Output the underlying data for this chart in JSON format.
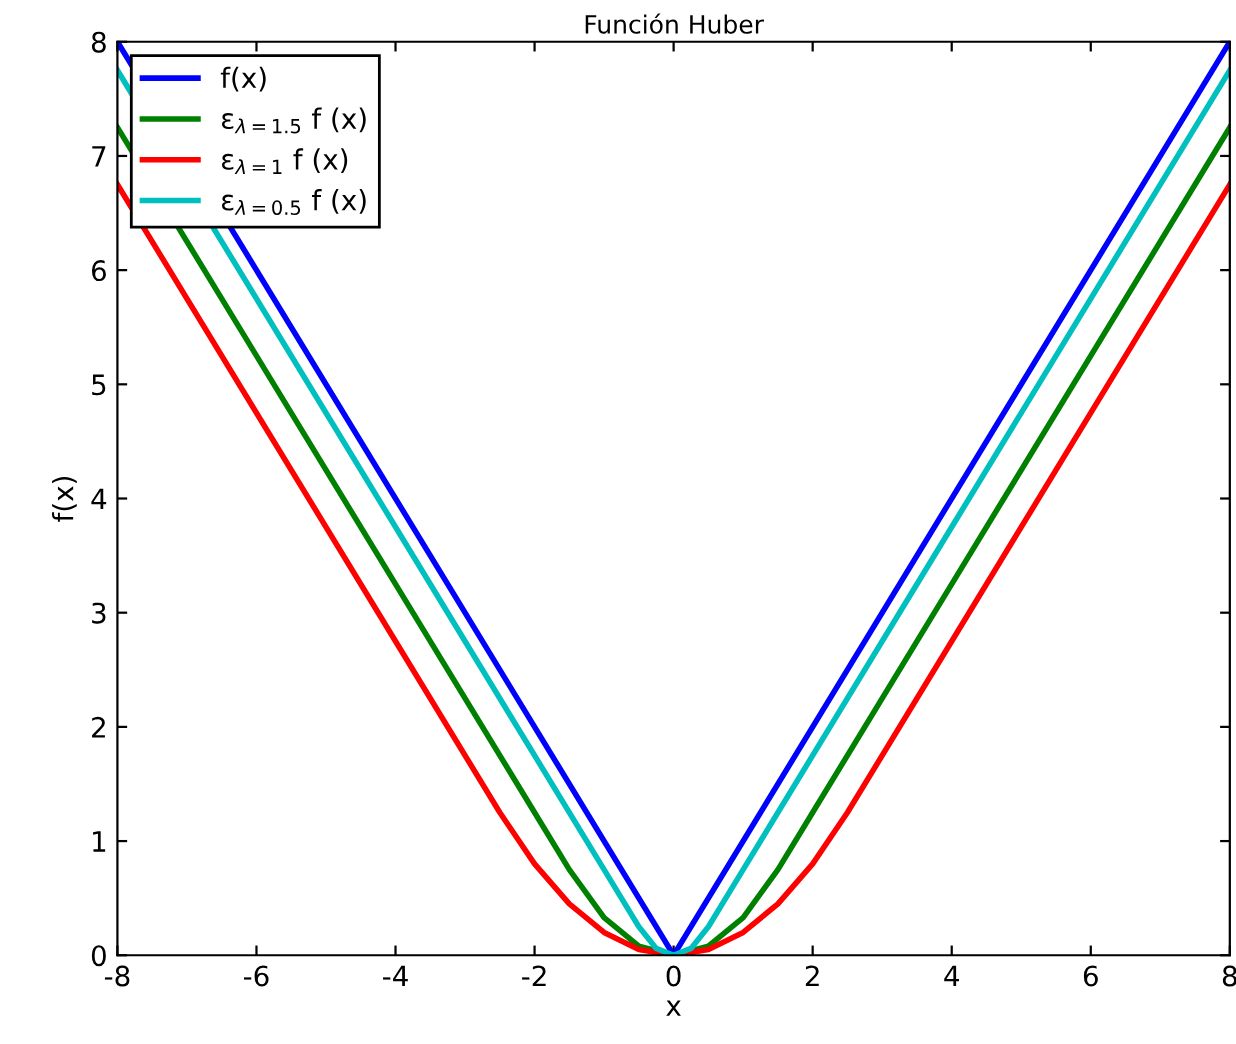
{
  "chart_data": {
    "type": "line",
    "title": "Función Huber",
    "xlabel": "x",
    "ylabel": "f(x)",
    "xlim": [
      -8,
      8
    ],
    "ylim": [
      0,
      8
    ],
    "xticks": [
      -8,
      -6,
      -4,
      -2,
      0,
      2,
      4,
      6,
      8
    ],
    "yticks": [
      0,
      1,
      2,
      3,
      4,
      5,
      6,
      7,
      8
    ],
    "grid": false,
    "legend": "top left",
    "line_style": "solid",
    "marker": "none",
    "series": [
      {
        "name": "f(x)",
        "color": "#0000ff",
        "x": [
          -8,
          0,
          8
        ],
        "values": [
          8,
          0,
          8
        ]
      },
      {
        "name": "ε$_{λ=1.5}$ f (x)",
        "color": "#008000",
        "x": [
          -8,
          -4,
          -2,
          -1.5,
          -1,
          -0.5,
          0,
          0.5,
          1,
          1.5,
          2,
          4,
          8
        ],
        "values": [
          7.25,
          3.25,
          1.25,
          0.75,
          0.33,
          0.08,
          0,
          0.08,
          0.33,
          0.75,
          1.25,
          3.25,
          7.25
        ]
      },
      {
        "name": "ε$_{λ=1}$ f (x)",
        "color": "#ff0000",
        "x": [
          -8,
          -4,
          -2.5,
          -2,
          -1.5,
          -1,
          -0.5,
          0,
          0.5,
          1,
          1.5,
          2,
          2.5,
          4,
          8
        ],
        "values": [
          6.75,
          2.75,
          1.25,
          0.8,
          0.45,
          0.2,
          0.05,
          0,
          0.05,
          0.2,
          0.45,
          0.8,
          1.25,
          2.75,
          6.75
        ]
      },
      {
        "name": "ε$_{λ=0.5}$ f (x)",
        "color": "#00bfbf",
        "x": [
          -8,
          -4,
          -1,
          -0.5,
          -0.25,
          0,
          0.25,
          0.5,
          1,
          4,
          8
        ],
        "values": [
          7.75,
          3.75,
          0.75,
          0.25,
          0.06,
          0,
          0.06,
          0.25,
          0.75,
          3.75,
          7.75
        ]
      }
    ]
  }
}
